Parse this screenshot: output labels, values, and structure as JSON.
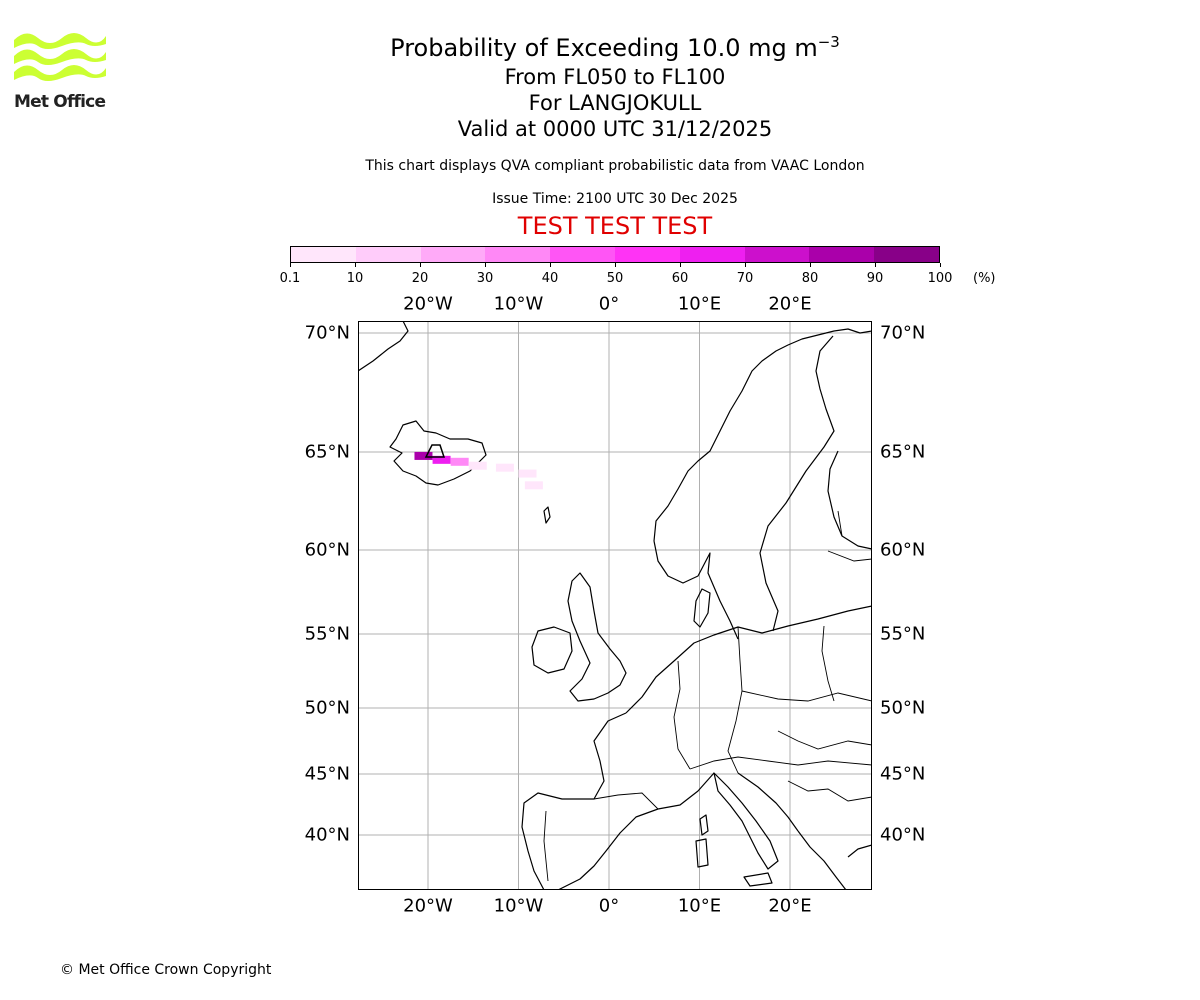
{
  "header": {
    "title": "Probability of Exceeding 10.0 mg m",
    "title_sup": "−3",
    "levels": "From FL050 to FL100",
    "location": "For LANGJOKULL",
    "valid": "Valid at 0000 UTC 31/12/2025",
    "info": "This chart displays QVA compliant probabilistic data from VAAC London",
    "issue_time": "Issue Time: 2100 UTC 30 Dec 2025",
    "test_banner": "TEST TEST TEST"
  },
  "logo": {
    "text": "Met Office",
    "color": "#ccff33"
  },
  "colorbar": {
    "ticks": [
      "0.1",
      "10",
      "20",
      "30",
      "40",
      "50",
      "60",
      "70",
      "80",
      "90",
      "100"
    ],
    "unit": "(%)",
    "colors": [
      "#ffe6fb",
      "#ffccfa",
      "#ffaaf8",
      "#ff88f6",
      "#ff55f5",
      "#ff33f5",
      "#ee1ff0",
      "#cc10cc",
      "#aa00aa",
      "#880088",
      "#5c005c"
    ]
  },
  "axes": {
    "lon_labels": [
      "20°W",
      "10°W",
      "0°",
      "10°E",
      "20°E"
    ],
    "lon_values": [
      -20,
      -10,
      0,
      10,
      20
    ],
    "lat_labels": [
      "70°N",
      "65°N",
      "60°N",
      "55°N",
      "50°N",
      "45°N",
      "40°N"
    ],
    "lat_values": [
      70,
      65,
      60,
      55,
      50,
      45,
      40
    ]
  },
  "map_data": {
    "volcano": "LANGJOKULL",
    "plume_probability_percent": [
      {
        "lon": -20.5,
        "lat": 64.8,
        "p": 85
      },
      {
        "lon": -18.5,
        "lat": 64.6,
        "p": 65
      },
      {
        "lon": -16.5,
        "lat": 64.5,
        "p": 35
      },
      {
        "lon": -14.5,
        "lat": 64.3,
        "p": 5
      },
      {
        "lon": -11.5,
        "lat": 64.2,
        "p": 5
      },
      {
        "lon": -9.0,
        "lat": 63.9,
        "p": 5
      },
      {
        "lon": -8.3,
        "lat": 63.3,
        "p": 5
      }
    ]
  },
  "footer": {
    "copyright": "© Met Office Crown Copyright"
  }
}
